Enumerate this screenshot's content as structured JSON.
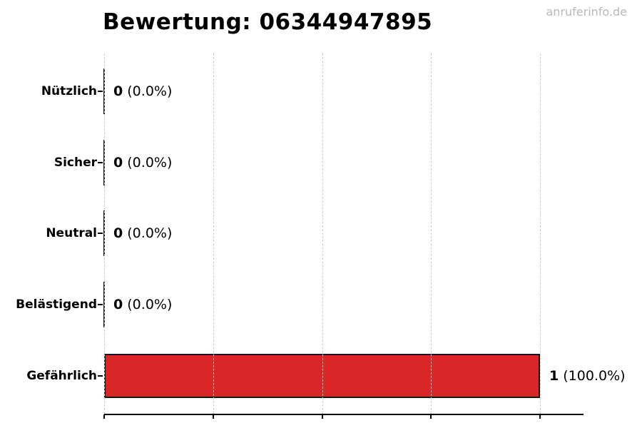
{
  "title": "Bewertung: 06344947895",
  "watermark": "anruferinfo.de",
  "chart_data": {
    "type": "bar",
    "orientation": "horizontal",
    "title": "Bewertung: 06344947895",
    "categories": [
      "Nützlich",
      "Sicher",
      "Neutral",
      "Belästigend",
      "Gefährlich"
    ],
    "values": [
      0,
      0,
      0,
      0,
      1
    ],
    "counts_total": 1,
    "percent_labels": [
      "(0.0%)",
      "(0.0%)",
      "(0.0%)",
      "(0.0%)",
      "(100.0%)"
    ],
    "value_labels": [
      "0 (0.0%)",
      "0 (0.0%)",
      "0 (0.0%)",
      "0 (0.0%)",
      "1 (100.0%)"
    ],
    "xlabel": "",
    "ylabel": "",
    "xlim": [
      0,
      1.1
    ],
    "x_axis_ticks": [
      0,
      0.25,
      0.5,
      0.75,
      1.0
    ],
    "x_tick_labels_shown": false,
    "grid": true,
    "legend": false,
    "colors": {
      "bar_fill": "#d92626",
      "bar_border": "#161616",
      "gridline": "#cdcdcd",
      "text": "#000000",
      "watermark": "#b9b9b9",
      "background": "#ffffff"
    }
  }
}
